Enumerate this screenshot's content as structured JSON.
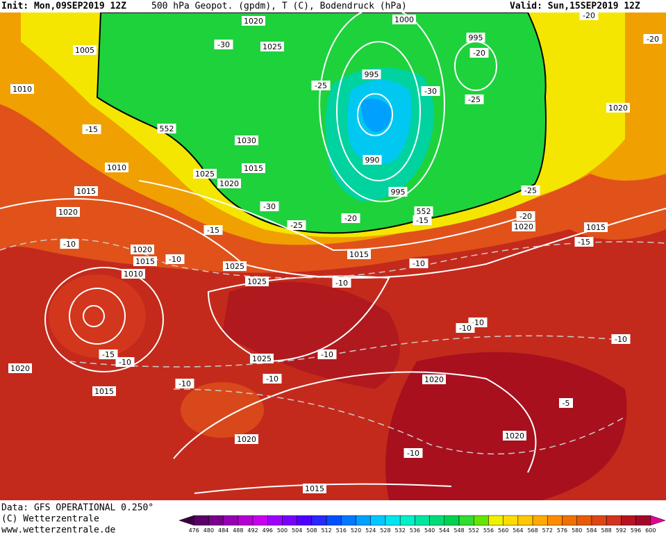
{
  "header": {
    "init": "Init: Mon,09SEP2019 12Z",
    "title": "500 hPa Geopot. (gpdm), T (C), Bodendruck (hPa)",
    "valid": "Valid: Sun,15SEP2019 12Z"
  },
  "footer": {
    "data": "Data: GFS OPERATIONAL 0.250°",
    "copyright": "(C) Wetterzentrale",
    "url": "www.wetterzentrale.de"
  },
  "map": {
    "labels": [
      "1020",
      "1000",
      "995",
      "-20",
      "-20",
      "1005",
      "-30",
      "1025",
      "-20",
      "1010",
      "995",
      "-25",
      "-30",
      "-25",
      "1020",
      "-15",
      "552",
      "1030",
      "990",
      "1010",
      "1015",
      "1025",
      "1020",
      "995",
      "-25",
      "1015",
      "-30",
      "552",
      "-15",
      "-20",
      "-20",
      "-25",
      "1020",
      "1020",
      "1015",
      "-15",
      "-15",
      "-10",
      "1020",
      "-10",
      "1015",
      "1025",
      "1015",
      "-10",
      "1010",
      "1025",
      "-10",
      "-10",
      "-10",
      "-10",
      "-15",
      "-10",
      "1025",
      "-10",
      "1020",
      "-10",
      "1020",
      "-10",
      "1015",
      "-5",
      "1020",
      "1020",
      "-10",
      "1015"
    ]
  },
  "colorbar": {
    "labels": [
      476,
      480,
      484,
      488,
      492,
      496,
      500,
      504,
      508,
      512,
      516,
      520,
      524,
      528,
      532,
      536,
      540,
      544,
      548,
      552,
      556,
      560,
      564,
      568,
      572,
      576,
      580,
      584,
      588,
      592,
      596,
      600
    ],
    "colors": [
      "#3c0040",
      "#5a0068",
      "#78008c",
      "#9600b4",
      "#b400d2",
      "#c800f0",
      "#a000ff",
      "#7800ff",
      "#5000ff",
      "#2828ff",
      "#0050ff",
      "#0078ff",
      "#00a0ff",
      "#00c8ff",
      "#00e6f0",
      "#00f0c8",
      "#00e6a0",
      "#00dc78",
      "#00d250",
      "#32dc32",
      "#64e600",
      "#f0f000",
      "#ffdc00",
      "#ffc800",
      "#ffaa00",
      "#ff8c00",
      "#f07000",
      "#e65a0a",
      "#dc4614",
      "#d2321e",
      "#b4141e",
      "#a00a28",
      "#e6009a"
    ]
  }
}
